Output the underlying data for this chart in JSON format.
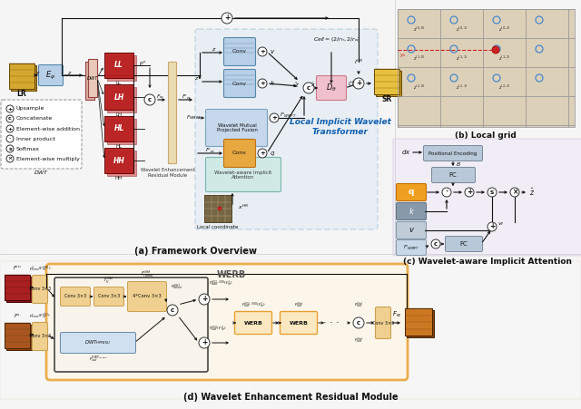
{
  "panel_a_title": "(a) Framework Overview",
  "panel_b_title": "(b) Local grid",
  "panel_c_title": "(c) Wavelet-aware Implicit Attention",
  "panel_d_title": "(d) Wavelet Enhancement Residual Module",
  "bg_color": "#f5f5f5",
  "light_blue_bg": "#cde0f0",
  "light_green_bg": "#c8e8e0",
  "light_pink_bg": "#f5dde0",
  "orange_color": "#f0a020",
  "blue_box_color": "#b8cfe8",
  "pink_box_color": "#f0c0cc",
  "green_box_color": "#a0d0c8",
  "gray_box_color": "#b8c8d8",
  "peach_box_color": "#f0d090",
  "peach_tall_color": "#f0ddb8",
  "dashed_border": "#80b0d8",
  "arrow_color": "#111111",
  "text_color": "#111111",
  "italic_blue": "#1060b0",
  "dark_red": "#8b1515",
  "legend_bg": "#f8f8f8",
  "werm_outer": "#e8a030",
  "werm_inner_bg": "#fef8ec"
}
